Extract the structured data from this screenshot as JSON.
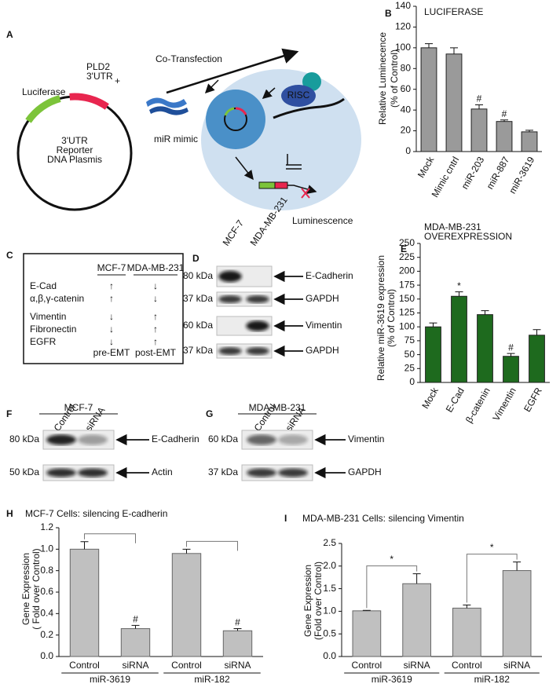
{
  "panels": {
    "a": {
      "label": "A",
      "luciferase": "Luciferase",
      "utr": [
        "PLD2",
        "3'UTR"
      ],
      "plasmid": [
        "3'UTR",
        "Reporter",
        "DNA Plasmis"
      ],
      "plus": "+",
      "transfection": "Co-Transfection",
      "mimic": "miR mimic",
      "risc": "RISC",
      "luminescence": "Luminescence"
    },
    "c": {
      "label": "C",
      "columns": [
        "MCF-7",
        "MDA-MB-231"
      ],
      "rows": [
        {
          "name": "E-Cad",
          "values": [
            "↑",
            "↓"
          ]
        },
        {
          "name": "α,β,γ-catenin",
          "values": [
            "↑",
            "↓"
          ]
        },
        {
          "name": "Vimentin",
          "values": [
            "↓",
            "↑"
          ]
        },
        {
          "name": "Fibronectin",
          "values": [
            "↓",
            "↑"
          ]
        },
        {
          "name": "EGFR",
          "values": [
            "↓",
            "↑"
          ]
        }
      ],
      "footer": [
        "pre-EMT",
        "post-EMT"
      ]
    },
    "d": {
      "label": "D",
      "lanes": [
        "MCF-7",
        "MDA-MB-231"
      ],
      "blots": [
        {
          "size": "80 kDa",
          "protein": "E-Cadherin"
        },
        {
          "size": "37 kDa",
          "protein": "GAPDH"
        },
        {
          "size": "60 kDa",
          "protein": "Vimentin"
        },
        {
          "size": "37 kDa",
          "protein": "GAPDH"
        }
      ]
    },
    "f": {
      "label": "F",
      "cell_line": "MCF-7",
      "lanes": [
        "Control",
        "siRNA"
      ],
      "blots": [
        {
          "size": "80 kDa",
          "protein": "E-Cadherin"
        },
        {
          "size": "50 kDa",
          "protein": "Actin"
        }
      ]
    },
    "g": {
      "label": "G",
      "cell_line": "MDA-MB-231",
      "lanes": [
        "Control",
        "siRNA"
      ],
      "blots": [
        {
          "size": "60 kDa",
          "protein": "Vimentin"
        },
        {
          "size": "37 kDa",
          "protein": "GAPDH"
        }
      ]
    }
  },
  "chart_data": [
    {
      "type": "bar",
      "panel_label": "B",
      "title": [
        "LUCIFERASE"
      ],
      "ylabel": [
        "Relative Luminecence",
        "(% of Control)"
      ],
      "categories": [
        "Mock",
        "Mimic cntrl",
        "miR-203",
        "miR-887",
        "miR-3619"
      ],
      "values": [
        100,
        94,
        41,
        29,
        19
      ],
      "error": [
        4,
        6,
        4,
        1.5,
        1.5
      ],
      "markers": [
        null,
        null,
        "#",
        "#",
        null
      ],
      "color": "#9a9a9a",
      "ylim": [
        0,
        140
      ],
      "yticks": [
        0,
        20,
        40,
        60,
        80,
        100,
        120,
        140
      ]
    },
    {
      "type": "bar",
      "panel_label": "E",
      "title": [
        "MDA-MB-231",
        "OVEREXPRESSION"
      ],
      "ylabel": [
        "Relative miR-3619 expression",
        "(% of Control)"
      ],
      "categories": [
        "Mock",
        "E-Cad",
        "β-catenin",
        "Vimentin",
        "EGFR"
      ],
      "values": [
        100,
        155,
        122,
        47,
        85
      ],
      "error": [
        7,
        8,
        7,
        5,
        10
      ],
      "markers": [
        null,
        "*",
        null,
        "#",
        null
      ],
      "color": "#1e6a1e",
      "ylim": [
        0,
        250
      ],
      "yticks": [
        0,
        25,
        50,
        75,
        100,
        125,
        150,
        175,
        200,
        225,
        250
      ]
    },
    {
      "type": "bar",
      "panel_label": "H",
      "title": [
        "MCF-7 Cells: silencing E-cadherin"
      ],
      "ylabel": [
        "Gene Expression",
        "( Fold over Control)"
      ],
      "categories": [
        "Control",
        "siRNA",
        "Control",
        "siRNA"
      ],
      "groups": [
        "miR-3619",
        "miR-182"
      ],
      "values": [
        1.0,
        0.26,
        0.96,
        0.24
      ],
      "error": [
        0.07,
        0.03,
        0.04,
        0.02
      ],
      "markers": [
        null,
        "#",
        null,
        "#"
      ],
      "color": "#c0c0c0",
      "ylim": [
        0,
        1.2
      ],
      "yticks": [
        {
          "value": 0,
          "label": "0.0"
        },
        0.2,
        0.4,
        0.6,
        0.8,
        {
          "value": 1,
          "label": "1.0"
        },
        1.2
      ]
    },
    {
      "type": "bar",
      "panel_label": "I",
      "title": [
        "MDA-MB-231 Cells: silencing Vimentin"
      ],
      "ylabel": [
        "Gene Expression",
        "(Fold over Control)"
      ],
      "categories": [
        "Control",
        "siRNA",
        "Control",
        "siRNA"
      ],
      "groups": [
        "miR-3619",
        "miR-182"
      ],
      "values": [
        1.01,
        1.61,
        1.07,
        1.9
      ],
      "error": [
        0.01,
        0.22,
        0.07,
        0.19
      ],
      "markers": [
        null,
        "*",
        null,
        "*"
      ],
      "color": "#c0c0c0",
      "ylim": [
        0,
        2.5
      ],
      "yticks": [
        {
          "value": 0,
          "label": "0.0"
        },
        0.5,
        {
          "value": 1,
          "label": "1.0"
        },
        1.5,
        {
          "value": 2,
          "label": "2.0"
        },
        2.5
      ]
    }
  ]
}
